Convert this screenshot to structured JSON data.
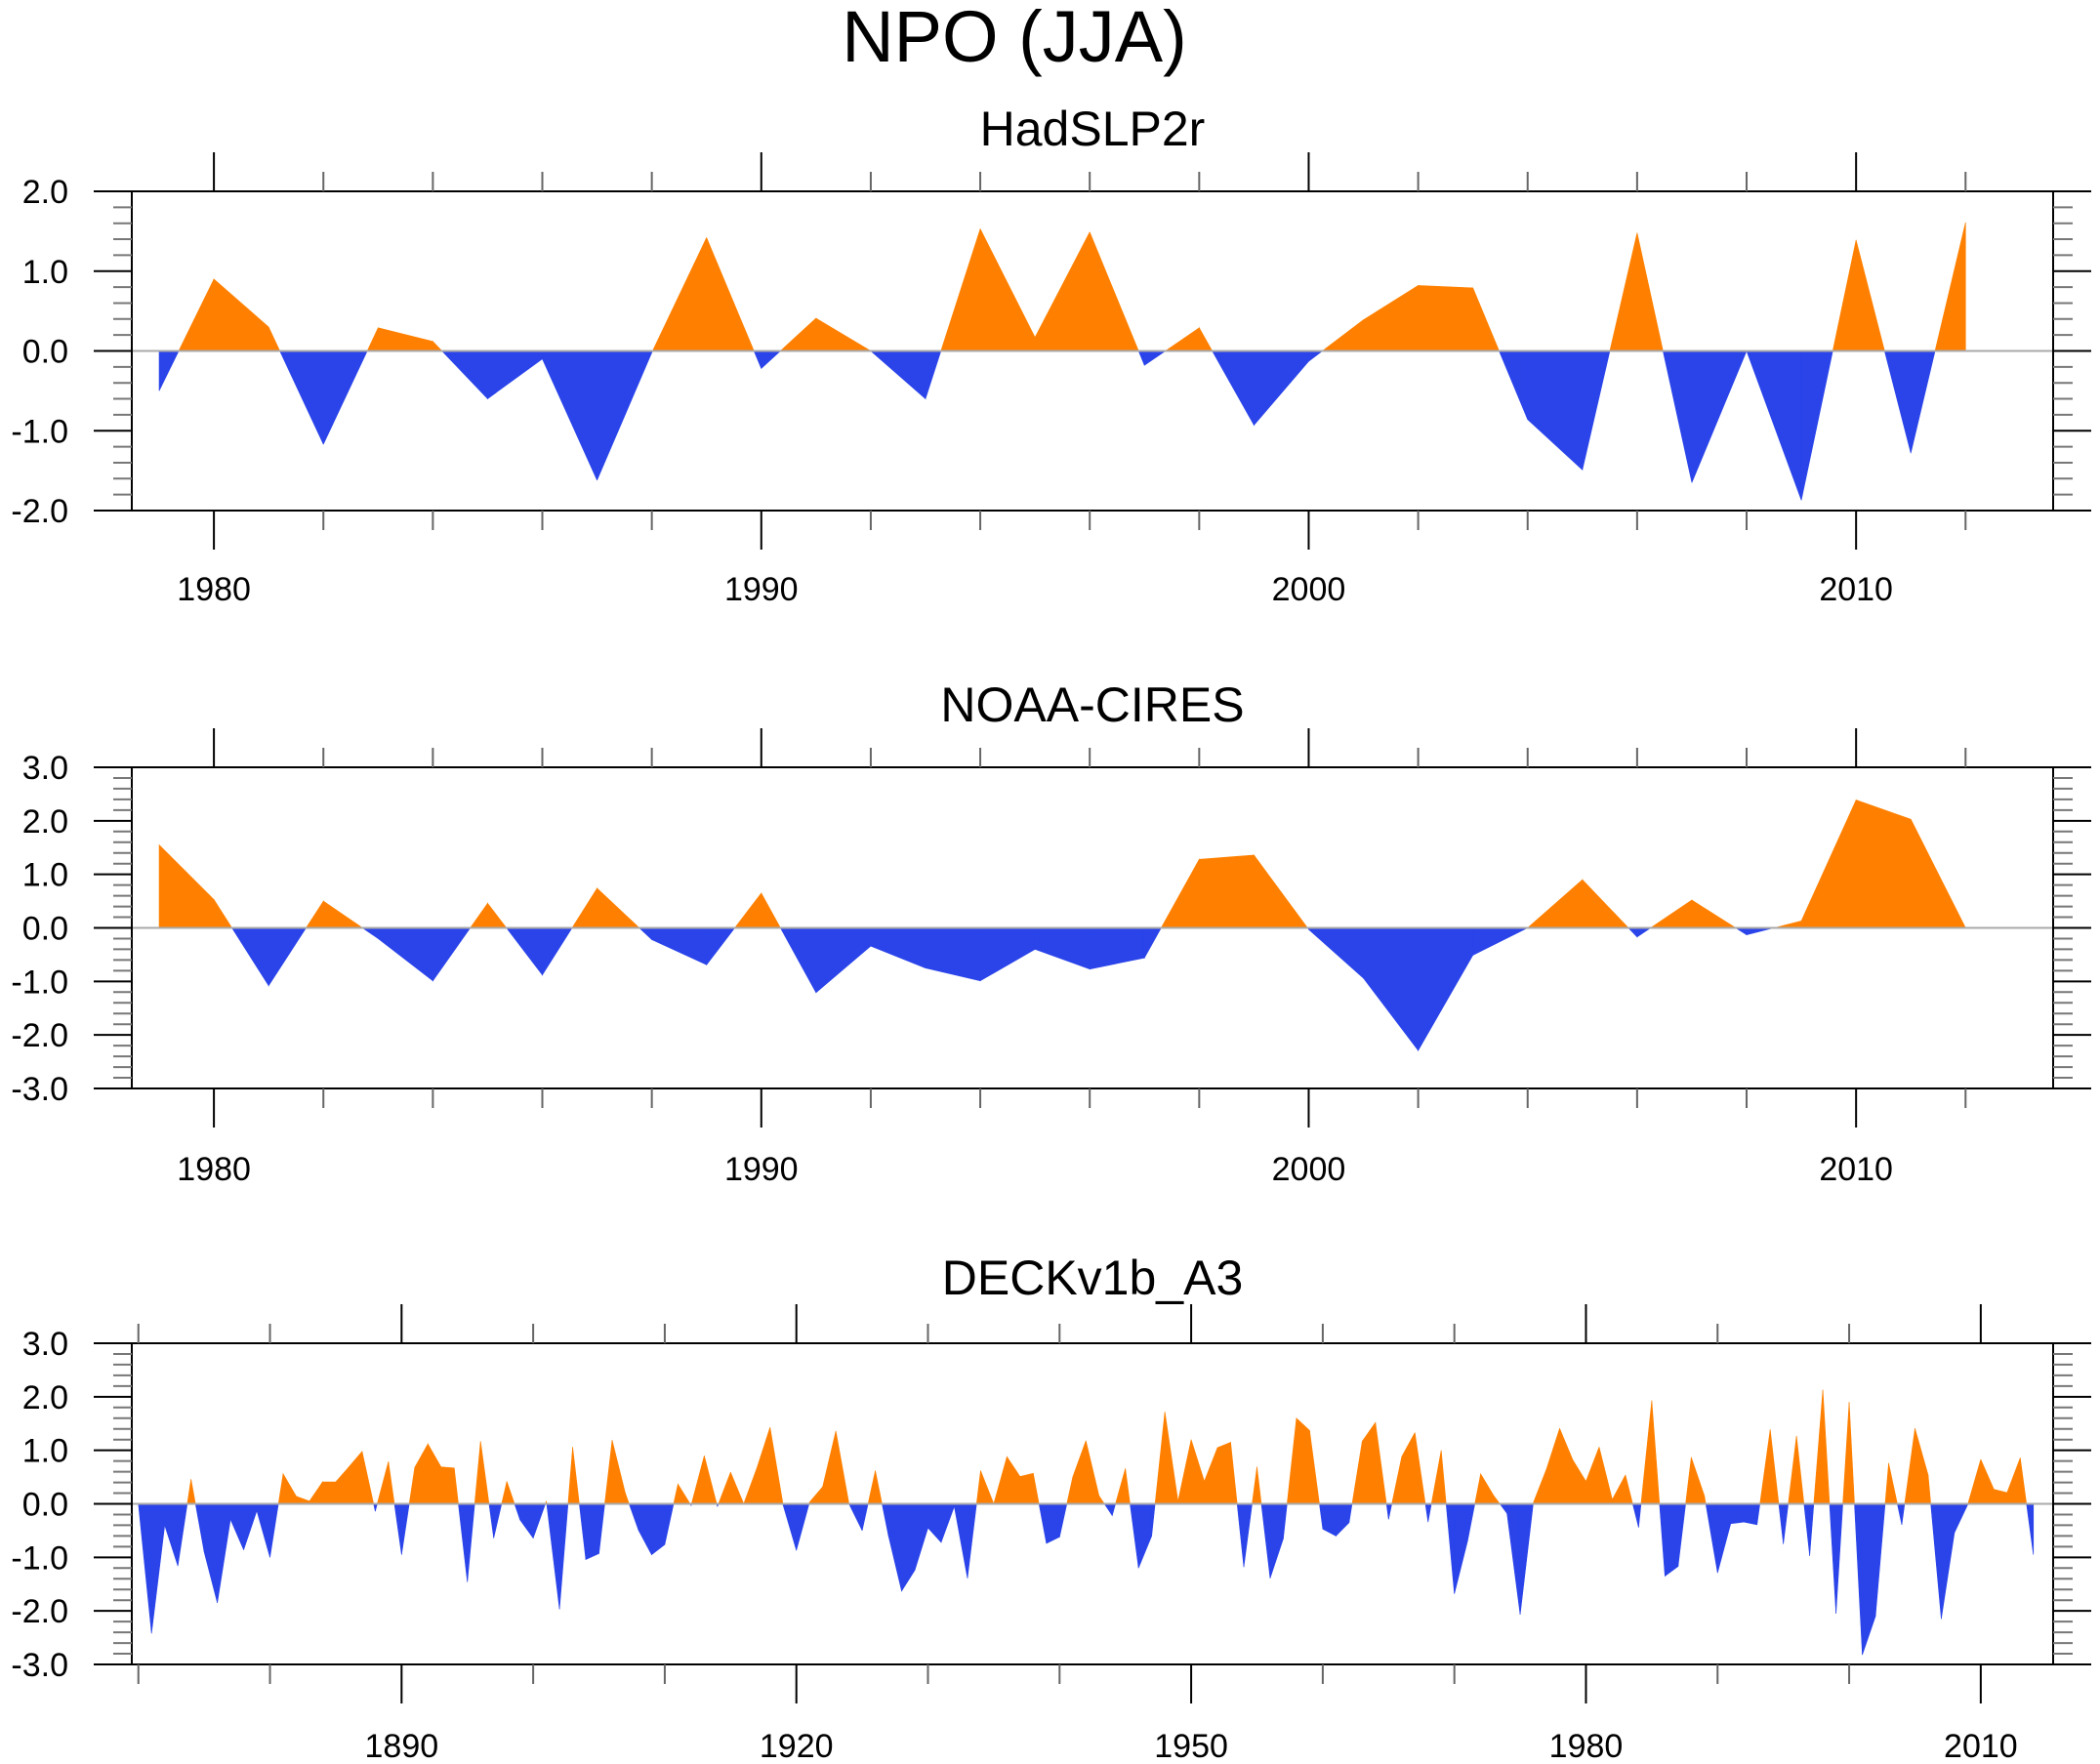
{
  "title": "NPO (JJA)",
  "colors": {
    "positive": "#FF8000",
    "negative": "#2A44EA",
    "axis": "#000000",
    "zero_line": "#aaaaaa"
  },
  "chart_data": [
    {
      "type": "area",
      "title": "HadSLP2r",
      "xlabel": "",
      "ylabel": "",
      "xlim": [
        1978.5,
        2013.6
      ],
      "ylim": [
        -2.0,
        2.0
      ],
      "x_major_ticks": [
        1980,
        1990,
        2000,
        2010
      ],
      "x_minor_step": 2,
      "y_major_ticks": [
        -2.0,
        -1.0,
        0.0,
        1.0,
        2.0
      ],
      "y_tick_labels": [
        "-2.0",
        "-1.0",
        "0.0",
        "1.0",
        "2.0"
      ],
      "y_minor_step": 0.2,
      "reference_line": 0.0,
      "fill": "above reference orange, below reference blue",
      "x": [
        1979,
        1980,
        1981,
        1982,
        1983,
        1984,
        1985,
        1986,
        1987,
        1988,
        1989,
        1990,
        1991,
        1992,
        1993,
        1994,
        1995,
        1996,
        1997,
        1998,
        1999,
        2000,
        2001,
        2002,
        2003,
        2004,
        2005,
        2006,
        2007,
        2008,
        2009,
        2010,
        2011,
        2012
      ],
      "values": [
        -0.5,
        0.9,
        0.3,
        -1.17,
        0.29,
        0.12,
        -0.6,
        -0.1,
        -1.62,
        -0.02,
        1.42,
        -0.22,
        0.41,
        0.0,
        -0.6,
        1.53,
        0.17,
        1.49,
        -0.18,
        0.29,
        -0.93,
        -0.13,
        0.39,
        0.82,
        0.79,
        -0.86,
        -1.49,
        1.48,
        -1.65,
        0.0,
        -1.87,
        1.39,
        -1.28,
        1.61
      ]
    },
    {
      "type": "area",
      "title": "NOAA-CIRES",
      "xlabel": "",
      "ylabel": "",
      "xlim": [
        1978.5,
        2013.6
      ],
      "ylim": [
        -3.0,
        3.0
      ],
      "x_major_ticks": [
        1980,
        1990,
        2000,
        2010
      ],
      "x_minor_step": 2,
      "y_major_ticks": [
        -3.0,
        -2.0,
        -1.0,
        0.0,
        1.0,
        2.0,
        3.0
      ],
      "y_tick_labels": [
        "-3.0",
        "-2.0",
        "-1.0",
        "0.0",
        "1.0",
        "2.0",
        "3.0"
      ],
      "y_minor_step": 0.2,
      "reference_line": 0.0,
      "fill": "above reference orange, below reference blue",
      "x": [
        1979,
        1980,
        1981,
        1982,
        1983,
        1984,
        1985,
        1986,
        1987,
        1988,
        1989,
        1990,
        1991,
        1992,
        1993,
        1994,
        1995,
        1996,
        1997,
        1998,
        1999,
        2000,
        2001,
        2002,
        2003,
        2004,
        2005,
        2006,
        2007,
        2008,
        2009,
        2010,
        2011,
        2012
      ],
      "values": [
        1.55,
        0.53,
        -1.08,
        0.5,
        -0.2,
        -0.99,
        0.46,
        -0.88,
        0.74,
        -0.22,
        -0.69,
        0.65,
        -1.21,
        -0.34,
        -0.75,
        -0.99,
        -0.4,
        -0.77,
        -0.56,
        1.28,
        1.36,
        -0.03,
        -0.94,
        -2.29,
        -0.51,
        0.0,
        0.9,
        -0.17,
        0.52,
        -0.13,
        0.13,
        2.39,
        2.03,
        0.0
      ]
    },
    {
      "type": "area",
      "title": "DECKv1b_A3",
      "xlabel": "",
      "ylabel": "",
      "xlim": [
        1869.5,
        2015.5
      ],
      "ylim": [
        -3.0,
        3.0
      ],
      "x_major_ticks": [
        1890,
        1920,
        1950,
        1980,
        2010
      ],
      "x_minor_step": 10,
      "y_major_ticks": [
        -3.0,
        -2.0,
        -1.0,
        0.0,
        1.0,
        2.0,
        3.0
      ],
      "y_tick_labels": [
        "-3.0",
        "-2.0",
        "-1.0",
        "0.0",
        "1.0",
        "2.0",
        "3.0"
      ],
      "y_minor_step": 0.2,
      "reference_line": 0.0,
      "fill": "above reference orange, below reference blue",
      "x_start": 1870,
      "values": [
        0.0,
        -2.42,
        -0.4,
        -1.16,
        0.46,
        -0.9,
        -1.85,
        -0.29,
        -0.86,
        -0.13,
        -1.0,
        0.56,
        0.14,
        0.05,
        0.41,
        0.41,
        0.69,
        0.98,
        -0.14,
        0.79,
        -0.95,
        0.68,
        1.12,
        0.69,
        0.67,
        -1.46,
        1.17,
        -0.64,
        0.42,
        -0.3,
        -0.64,
        0.05,
        -1.97,
        1.06,
        -1.04,
        -0.93,
        1.19,
        0.2,
        -0.49,
        -0.95,
        -0.76,
        0.37,
        -0.03,
        0.9,
        -0.05,
        0.59,
        0.0,
        0.67,
        1.43,
        -0.03,
        -0.87,
        0.03,
        0.32,
        1.36,
        0.0,
        -0.5,
        0.62,
        -0.6,
        -1.63,
        -1.24,
        -0.45,
        -0.72,
        -0.05,
        -1.39,
        0.62,
        0.0,
        0.88,
        0.51,
        0.57,
        -0.74,
        -0.62,
        0.5,
        1.18,
        0.15,
        -0.22,
        0.66,
        -1.2,
        -0.6,
        1.72,
        0.05,
        1.2,
        0.42,
        1.05,
        1.15,
        -1.18,
        0.69,
        -1.39,
        -0.65,
        1.6,
        1.37,
        -0.47,
        -0.6,
        -0.35,
        1.17,
        1.52,
        -0.29,
        0.88,
        1.33,
        -0.34,
        1.0,
        -1.68,
        -0.7,
        0.56,
        0.15,
        -0.18,
        -2.07,
        0.02,
        0.65,
        1.41,
        0.82,
        0.42,
        1.06,
        0.08,
        0.54,
        -0.44,
        1.93,
        -1.35,
        -1.17,
        0.87,
        0.15,
        -1.29,
        -0.37,
        -0.34,
        -0.39,
        1.39,
        -0.75,
        1.27,
        -0.97,
        2.13,
        -2.05,
        1.9,
        -2.82,
        -2.1,
        0.76,
        -0.39,
        1.41,
        0.54,
        -2.15,
        -0.54,
        -0.02,
        0.83,
        0.27,
        0.21,
        0.86,
        -0.95
      ]
    }
  ]
}
